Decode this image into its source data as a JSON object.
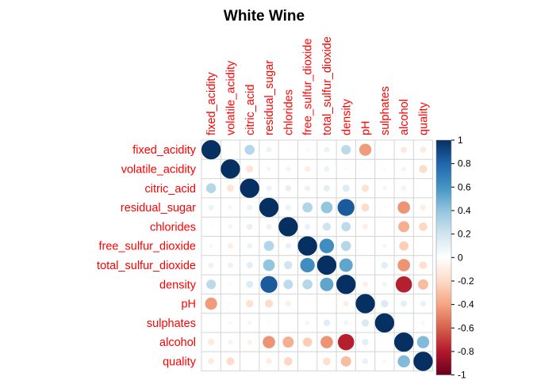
{
  "chart_data": {
    "type": "heatmap",
    "style": "corrplot-circle",
    "title": "White Wine",
    "label_color": "#FF0000",
    "variables": [
      "fixed_acidity",
      "volatile_acidity",
      "citric_acid",
      "residual_sugar",
      "chlorides",
      "free_sulfur_dioxide",
      "total_sulfur_dioxide",
      "density",
      "pH",
      "sulphates",
      "alcohol",
      "quality"
    ],
    "matrix": [
      [
        1.0,
        -0.02,
        0.29,
        0.09,
        0.02,
        -0.05,
        0.09,
        0.27,
        -0.43,
        -0.02,
        -0.12,
        -0.11
      ],
      [
        -0.02,
        1.0,
        -0.15,
        0.06,
        0.07,
        -0.1,
        0.09,
        0.03,
        -0.03,
        -0.04,
        0.07,
        -0.19
      ],
      [
        0.29,
        -0.15,
        1.0,
        0.09,
        0.11,
        0.09,
        0.12,
        0.15,
        -0.16,
        0.06,
        -0.08,
        -0.01
      ],
      [
        0.09,
        0.06,
        0.09,
        1.0,
        0.09,
        0.3,
        0.4,
        0.84,
        -0.19,
        -0.03,
        -0.45,
        -0.1
      ],
      [
        0.02,
        0.07,
        0.11,
        0.09,
        1.0,
        0.1,
        0.2,
        0.26,
        -0.09,
        0.02,
        -0.36,
        -0.21
      ],
      [
        -0.05,
        -0.1,
        0.09,
        0.3,
        0.1,
        1.0,
        0.62,
        0.29,
        0.0,
        0.06,
        -0.25,
        0.01
      ],
      [
        0.09,
        0.09,
        0.12,
        0.4,
        0.2,
        0.62,
        1.0,
        0.53,
        0.0,
        0.13,
        -0.45,
        -0.17
      ],
      [
        0.27,
        0.03,
        0.15,
        0.84,
        0.26,
        0.29,
        0.53,
        1.0,
        -0.09,
        0.07,
        -0.78,
        -0.31
      ],
      [
        -0.43,
        -0.03,
        -0.16,
        -0.19,
        -0.09,
        0.0,
        0.0,
        -0.09,
        1.0,
        0.16,
        0.12,
        0.1
      ],
      [
        -0.02,
        -0.04,
        0.06,
        -0.03,
        0.02,
        0.06,
        0.13,
        0.07,
        0.16,
        1.0,
        -0.02,
        0.05
      ],
      [
        -0.12,
        0.07,
        -0.08,
        -0.45,
        -0.36,
        -0.25,
        -0.45,
        -0.78,
        0.12,
        -0.02,
        1.0,
        0.44
      ],
      [
        -0.11,
        -0.19,
        -0.01,
        -0.1,
        -0.21,
        0.01,
        -0.17,
        -0.31,
        0.1,
        0.05,
        0.44,
        1.0
      ]
    ],
    "colorbar": {
      "range": [
        -1,
        1
      ],
      "ticks": [
        "1",
        "0.8",
        "0.6",
        "0.4",
        "0.2",
        "0",
        "-0.2",
        "-0.4",
        "-0.6",
        "-0.8",
        "-1"
      ],
      "palette": [
        "#67001F",
        "#B2182B",
        "#D6604D",
        "#F4A582",
        "#FDDBC7",
        "#FFFFFF",
        "#D1E5F0",
        "#92C5DE",
        "#4393C3",
        "#2166AC",
        "#053061"
      ]
    }
  }
}
